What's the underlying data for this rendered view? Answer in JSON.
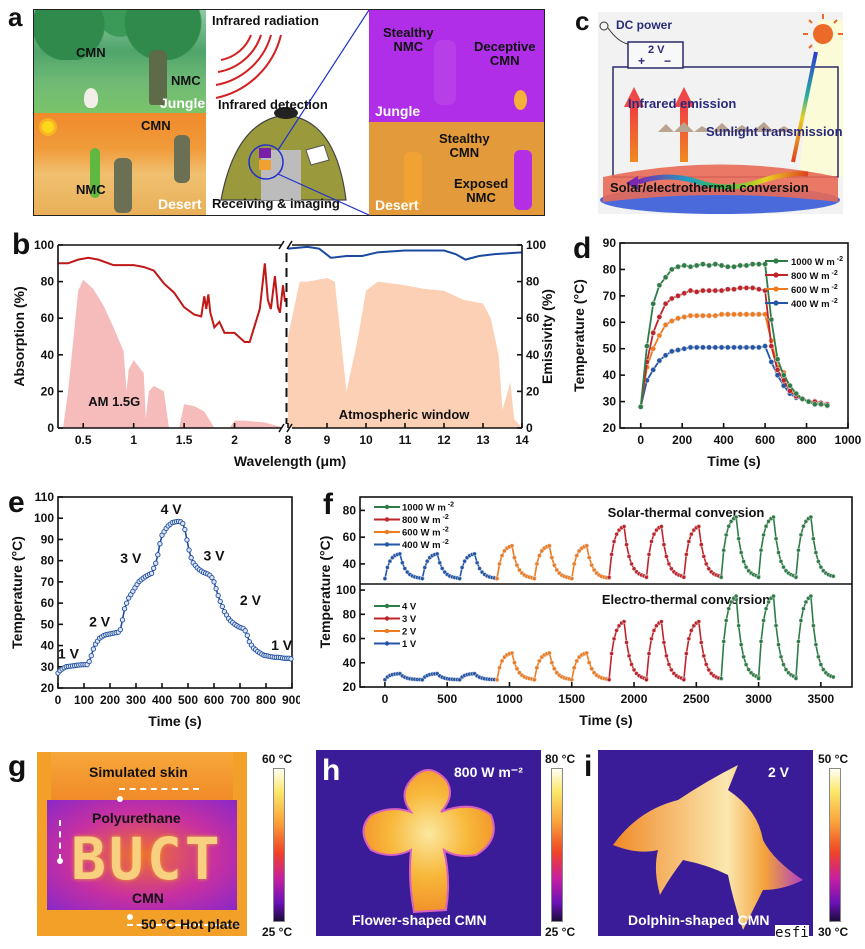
{
  "panels": {
    "a": {
      "label": "a",
      "jungle_scene": {
        "cmn": "CMN",
        "nmc": "NMC",
        "env": "Jungle"
      },
      "desert_scene": {
        "cmn": "CMN",
        "nmc": "NMC",
        "env": "Desert"
      },
      "center": {
        "radiation": "Infrared radiation",
        "detection": "Infrared detection",
        "imaging": "Receiving & imaging"
      },
      "ir_jungle": {
        "stealthy": "Stealthy\nNMC",
        "deceptive": "Deceptive\nCMN",
        "env": "Jungle"
      },
      "ir_desert": {
        "stealthy": "Stealthy\nCMN",
        "exposed": "Exposed\nNMC",
        "env": "Desert"
      },
      "colors": {
        "ir_jungle_bg": "#b02ee8",
        "ir_desert_bg": "#e39a3a",
        "radiation": "#d42020",
        "zoom_line": "#2030d0"
      }
    },
    "c": {
      "label": "c",
      "power": "DC power",
      "voltage": "2 V",
      "plus": "+",
      "minus": "−",
      "emission": "Infrared emission",
      "transmission": "Sunlight transmission",
      "conversion": "Solar/electrothermal conversion"
    },
    "g": {
      "label": "g",
      "skin": "Simulated skin",
      "pu": "Polyurethane",
      "letters": "BUCT",
      "cmn": "CMN",
      "plate": "50 °C Hot plate",
      "cbar_max": "60 °C",
      "cbar_min": "25 °C"
    },
    "h": {
      "label": "h",
      "condition": "800 W m⁻²",
      "caption": "Flower-shaped CMN",
      "cbar_max": "80 °C",
      "cbar_min": "25 °C"
    },
    "i": {
      "label": "i",
      "condition": "2 V",
      "caption": "Dolphin-shaped CMN",
      "cbar_max": "50 °C",
      "cbar_min": "30 °C"
    },
    "watermark": "esfi"
  },
  "chart_data": [
    {
      "id": "b",
      "label": "b",
      "type": "line",
      "xlabel": "Wavelength (μm)",
      "ylabel_left": "Absorption (%)",
      "ylabel_right": "Emissivity (%)",
      "ylim": [
        0,
        100
      ],
      "yticks": [
        0,
        20,
        40,
        60,
        80,
        100
      ],
      "broken_axis": true,
      "segment1": {
        "xlim": [
          0.25,
          2.5
        ],
        "xticks": [
          0.5,
          1,
          1.5,
          2
        ],
        "xticklabels": [
          "0.5",
          "1",
          "1.5",
          "2"
        ]
      },
      "segment2": {
        "xlim": [
          8,
          14
        ],
        "xticks": [
          8,
          9,
          10,
          11,
          12,
          13,
          14
        ],
        "xticklabels": [
          "8",
          "9",
          "10",
          "11",
          "12",
          "13",
          "14"
        ]
      },
      "annotations": [
        "AM 1.5G",
        "Atmospheric window"
      ],
      "series": [
        {
          "name": "Absorption",
          "color": "#c01818",
          "x": [
            0.25,
            0.35,
            0.45,
            0.55,
            0.65,
            0.8,
            1.0,
            1.1,
            1.2,
            1.3,
            1.4,
            1.5,
            1.6,
            1.67,
            1.7,
            1.72,
            1.74,
            1.76,
            1.8,
            1.85,
            1.9,
            2.0,
            2.1,
            2.15,
            2.25,
            2.3,
            2.33,
            2.36,
            2.4,
            2.43,
            2.45,
            2.48,
            2.5
          ],
          "y": [
            90,
            90,
            92,
            93,
            92,
            89,
            89,
            88,
            86,
            79,
            74,
            66,
            62,
            61,
            72,
            65,
            73,
            63,
            55,
            58,
            52,
            52,
            47,
            47,
            65,
            90,
            70,
            65,
            83,
            66,
            63,
            78,
            69
          ]
        },
        {
          "name": "Emissivity",
          "color": "#1a4aa0",
          "x": [
            8,
            8.5,
            8.8,
            9.1,
            9.5,
            9.9,
            10.3,
            11,
            11.5,
            12,
            12.3,
            12.55,
            12.9,
            13.3,
            14
          ],
          "y": [
            98,
            99,
            98,
            93,
            94,
            94,
            96,
            97,
            97,
            97,
            95,
            92,
            94,
            95,
            96
          ]
        },
        {
          "name": "AM 1.5G",
          "color": "#f6bcbc",
          "type": "area",
          "x": [
            0.3,
            0.35,
            0.45,
            0.5,
            0.6,
            0.7,
            0.8,
            0.9,
            0.93,
            0.95,
            1.0,
            1.1,
            1.12,
            1.15,
            1.2,
            1.3,
            1.35,
            1.4,
            1.45,
            1.5,
            1.6,
            1.7,
            1.8,
            1.85,
            1.95,
            2.0,
            2.1,
            2.3,
            2.5
          ],
          "y": [
            0,
            20,
            75,
            81,
            76,
            67,
            55,
            42,
            20,
            32,
            37,
            30,
            5,
            20,
            23,
            20,
            0,
            0,
            0,
            13,
            12,
            9,
            0,
            0,
            0,
            4,
            4,
            3,
            0
          ]
        },
        {
          "name": "Atmospheric window",
          "color": "#fcd0b4",
          "type": "area",
          "x": [
            8,
            8.3,
            8.5,
            9,
            9.2,
            9.4,
            9.5,
            9.6,
            9.8,
            10,
            10.3,
            11,
            11.5,
            12,
            12.5,
            13,
            13.2,
            13.4,
            13.5,
            13.7,
            13.8,
            14
          ],
          "y": [
            50,
            80,
            80,
            82,
            80,
            40,
            20,
            30,
            50,
            75,
            80,
            78,
            76,
            75,
            70,
            68,
            60,
            40,
            10,
            25,
            5,
            0
          ]
        }
      ]
    },
    {
      "id": "d",
      "label": "d",
      "type": "line",
      "xlabel": "Time (s)",
      "ylabel": "Temperature (°C)",
      "xlim": [
        -100,
        1000
      ],
      "ylim": [
        20,
        90
      ],
      "xticks": [
        0,
        200,
        400,
        600,
        800,
        1000
      ],
      "yticks": [
        20,
        30,
        40,
        50,
        60,
        70,
        80,
        90
      ],
      "legend": "top-right",
      "x": [
        0,
        30,
        60,
        90,
        120,
        150,
        180,
        210,
        240,
        270,
        300,
        330,
        360,
        390,
        420,
        450,
        480,
        510,
        540,
        570,
        600,
        630,
        660,
        690,
        720,
        750,
        780,
        810,
        840,
        870,
        900
      ],
      "series": [
        {
          "name": "1000 W m⁻²",
          "name_base": "1000 W m",
          "color": "#2e7d46",
          "values": [
            28,
            51,
            67,
            74,
            77,
            80,
            81,
            81.5,
            81,
            81.5,
            82,
            81.5,
            82,
            81.5,
            81,
            81,
            81.5,
            81.5,
            82,
            82,
            82,
            61,
            46,
            40,
            36,
            33,
            31,
            30,
            29,
            29,
            28.5
          ]
        },
        {
          "name": "800 W m⁻²",
          "name_base": "800 W m",
          "color": "#c0242a",
          "values": [
            28,
            45,
            56,
            62,
            67,
            69,
            70,
            71,
            72,
            71.5,
            72,
            72,
            72,
            72,
            72.5,
            72.5,
            73,
            73,
            73,
            72.5,
            72,
            51,
            42,
            38,
            34,
            32,
            31,
            30,
            30,
            29.5,
            29
          ]
        },
        {
          "name": "600 W m⁻²",
          "name_base": "600 W m",
          "color": "#f07a1e",
          "values": [
            28,
            43,
            50,
            55,
            59,
            60.5,
            61.5,
            62,
            62.5,
            62.5,
            62.5,
            62.5,
            62.5,
            63,
            63,
            63,
            63,
            63,
            63,
            63,
            63,
            53,
            43,
            41,
            35,
            33,
            31,
            30,
            29.5,
            29,
            29
          ]
        },
        {
          "name": "400 W m⁻²",
          "name_base": "400 W m",
          "color": "#2456a8",
          "values": [
            28,
            38,
            42,
            45.5,
            47.5,
            49,
            49.5,
            50,
            50.5,
            50.5,
            50.5,
            50.5,
            50.5,
            50.5,
            50.5,
            50.5,
            50.5,
            50.5,
            50.5,
            50.5,
            51,
            45,
            40,
            36,
            33,
            31.5,
            31,
            30,
            29.5,
            29,
            28.5
          ]
        }
      ]
    },
    {
      "id": "e",
      "label": "e",
      "type": "line",
      "xlabel": "Time (s)",
      "ylabel": "Temperature (°C)",
      "xlim": [
        0,
        900
      ],
      "ylim": [
        20,
        110
      ],
      "xticks": [
        0,
        100,
        200,
        300,
        400,
        500,
        600,
        700,
        800,
        900
      ],
      "yticks": [
        20,
        30,
        40,
        50,
        60,
        70,
        80,
        90,
        100,
        110
      ],
      "annotations": [
        {
          "text": "1 V",
          "x": 40,
          "y": 34
        },
        {
          "text": "2 V",
          "x": 160,
          "y": 49
        },
        {
          "text": "3 V",
          "x": 280,
          "y": 79
        },
        {
          "text": "4 V",
          "x": 435,
          "y": 102
        },
        {
          "text": "3 V",
          "x": 600,
          "y": 80
        },
        {
          "text": "2 V",
          "x": 740,
          "y": 59
        },
        {
          "text": "1 V",
          "x": 860,
          "y": 38
        }
      ],
      "series": [
        {
          "name": "Temperature",
          "color": "#1f4ea0",
          "x": [
            0,
            10,
            30,
            60,
            90,
            115,
            125,
            140,
            160,
            180,
            200,
            220,
            238,
            245,
            255,
            270,
            290,
            310,
            330,
            350,
            360,
            370,
            380,
            390,
            400,
            420,
            440,
            460,
            470,
            480,
            490,
            500,
            510,
            520,
            540,
            560,
            580,
            590,
            600,
            610,
            620,
            640,
            660,
            680,
            700,
            715,
            725,
            735,
            750,
            770,
            790,
            810,
            830,
            850,
            870,
            890,
            900
          ],
          "values": [
            27,
            28.5,
            30,
            30.5,
            31,
            31,
            34,
            40,
            43.5,
            45,
            45.5,
            46,
            46.5,
            50,
            57,
            62,
            66,
            70,
            72,
            73.5,
            74,
            77,
            80,
            87,
            92,
            96,
            98,
            98.5,
            98.5,
            97.5,
            94,
            87,
            82,
            79,
            76,
            74.5,
            73.5,
            72.5,
            70,
            66,
            62,
            56,
            52,
            50,
            48.5,
            48,
            46,
            42,
            39,
            37,
            35.5,
            35,
            34.5,
            34.5,
            34,
            34,
            33.5
          ]
        }
      ]
    },
    {
      "id": "f",
      "label": "f",
      "type": "line",
      "xlabel": "Time (s)",
      "ylabel": "Temperature (°C)",
      "xlim": [
        -200,
        3750
      ],
      "xticks": [
        0,
        500,
        1000,
        1500,
        2000,
        2500,
        3000,
        3500
      ],
      "subplots": [
        {
          "title": "Solar-thermal conversion",
          "ylim": [
            25,
            90
          ],
          "yticks": [
            40,
            60,
            80
          ],
          "legend": "top-left",
          "series": [
            {
              "name": "1000 W m⁻²",
              "name_base": "1000 W m",
              "color": "#2e7d46",
              "t_start": 2700,
              "peak": 75,
              "base": 30
            },
            {
              "name": "800 W m⁻²",
              "name_base": "800 W m",
              "color": "#c0242a",
              "t_start": 1800,
              "peak": 68,
              "base": 30
            },
            {
              "name": "600 W m⁻²",
              "name_base": "600 W m",
              "color": "#f07a1e",
              "t_start": 900,
              "peak": 53.5,
              "base": 29
            },
            {
              "name": "400 W m⁻²",
              "name_base": "400 W m",
              "color": "#2456a8",
              "t_start": 0,
              "peak": 47.5,
              "base": 29
            }
          ]
        },
        {
          "title": "Electro-thermal conversion",
          "ylim": [
            20,
            105
          ],
          "yticks": [
            20,
            40,
            60,
            80,
            100
          ],
          "legend": "top-left",
          "series": [
            {
              "name": "4 V",
              "name_base": "4 V",
              "color": "#2e7d46",
              "t_start": 2700,
              "peak": 95,
              "base": 27
            },
            {
              "name": "3 V",
              "name_base": "3 V",
              "color": "#c0242a",
              "t_start": 1800,
              "peak": 74,
              "base": 26
            },
            {
              "name": "2 V",
              "name_base": "2 V",
              "color": "#f07a1e",
              "t_start": 900,
              "peak": 48,
              "base": 26
            },
            {
              "name": "1 V",
              "name_base": "1 V",
              "color": "#2456a8",
              "t_start": 0,
              "peak": 31,
              "base": 26
            }
          ]
        }
      ],
      "cycles_per_series": 3,
      "cycle_period_s": 300,
      "heating_s": 120
    }
  ]
}
